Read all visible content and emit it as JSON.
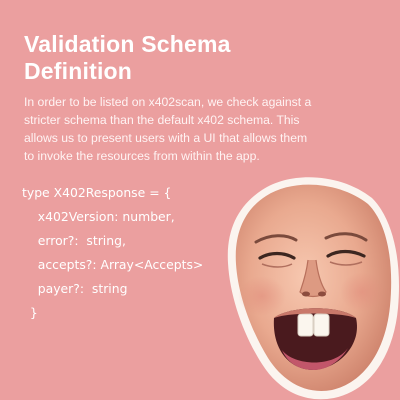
{
  "title_lines": [
    "Validation Schema",
    "Definition"
  ],
  "description_lines": [
    "In order to be listed on x402scan, we check against a",
    "stricter schema than the default x402 schema. This",
    "allows us to present users with a UI that allows them",
    "to invoke the resources from within the app."
  ],
  "code_lines": [
    "type X402Response = {",
    "    x402Version: number,",
    "    error?:  string,",
    "    accepts?: Array<Accepts>",
    "    payer?:  string",
    "  }"
  ],
  "colors": {
    "background": "#eb9f9f",
    "text": "#ffffff"
  },
  "sticker_icon": "open-mouth-face-sticker"
}
